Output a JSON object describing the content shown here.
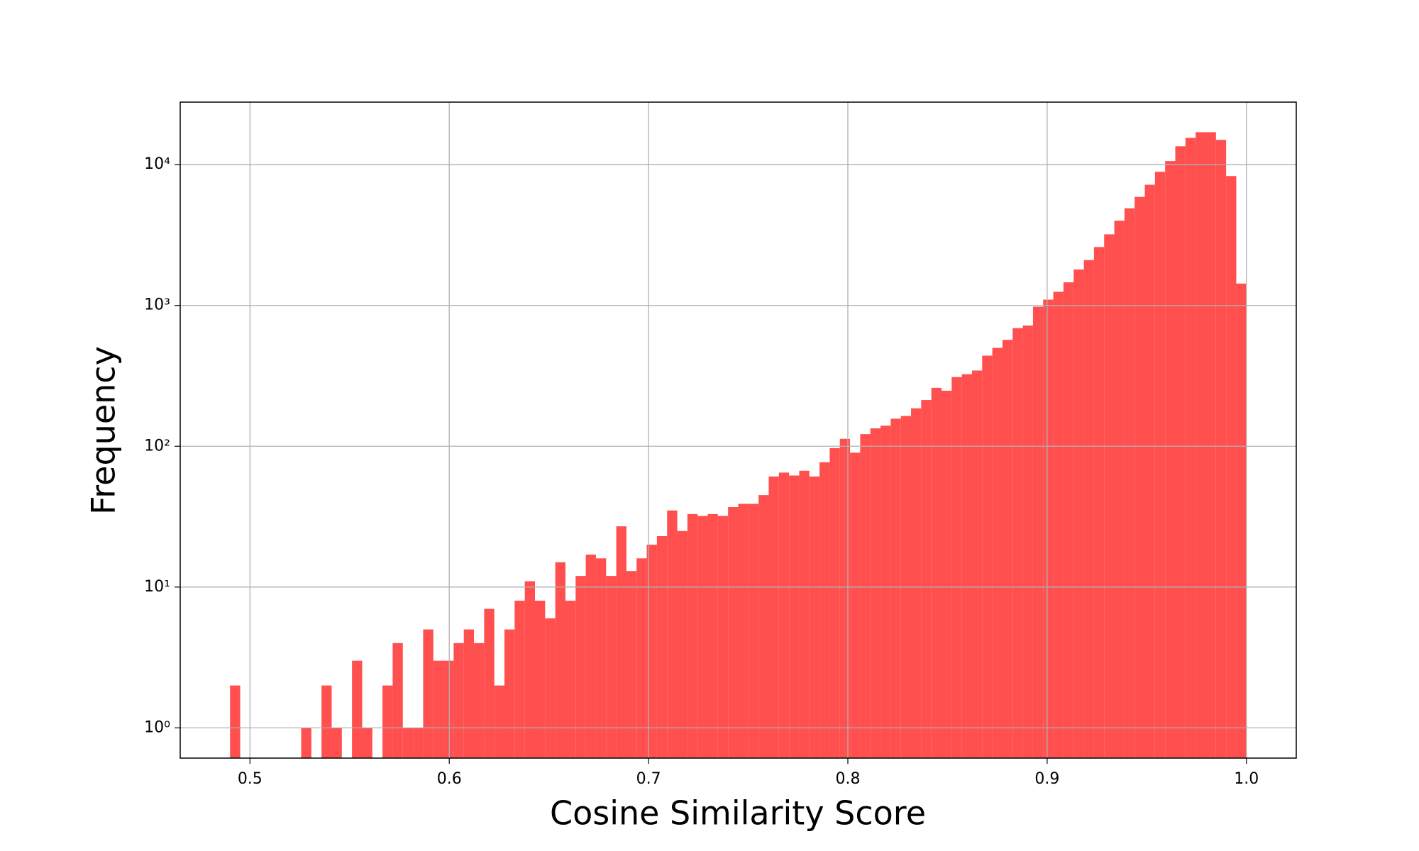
{
  "chart_data": {
    "type": "histogram",
    "x_label": "Cosine Similarity Score",
    "y_label": "Frequency",
    "bins": [
      0.49,
      0.4951,
      0.5002,
      0.5053,
      0.5104,
      0.5155,
      0.5206,
      0.5257,
      0.5308,
      0.5359,
      0.541,
      0.5461,
      0.5512,
      0.5563,
      0.5614,
      0.5665,
      0.5716,
      0.5767,
      0.5818,
      0.5869,
      0.592,
      0.5971,
      0.6022,
      0.6073,
      0.6124,
      0.6175,
      0.6226,
      0.6277,
      0.6328,
      0.6379,
      0.643,
      0.6481,
      0.6532,
      0.6583,
      0.6634,
      0.6685,
      0.6736,
      0.6787,
      0.6838,
      0.6889,
      0.694,
      0.6991,
      0.7042,
      0.7093,
      0.7144,
      0.7195,
      0.7246,
      0.7297,
      0.7348,
      0.7399,
      0.745,
      0.7501,
      0.7552,
      0.7603,
      0.7654,
      0.7705,
      0.7756,
      0.7807,
      0.7858,
      0.7909,
      0.796,
      0.8011,
      0.8062,
      0.8113,
      0.8164,
      0.8215,
      0.8266,
      0.8317,
      0.8368,
      0.8419,
      0.847,
      0.8521,
      0.8572,
      0.8623,
      0.8674,
      0.8725,
      0.8776,
      0.8827,
      0.8878,
      0.8929,
      0.898,
      0.9031,
      0.9082,
      0.9133,
      0.9184,
      0.9235,
      0.9286,
      0.9337,
      0.9388,
      0.9439,
      0.949,
      0.9541,
      0.9592,
      0.9643,
      0.9694,
      0.9745,
      0.9796,
      0.9847,
      0.9898,
      0.9949,
      1.0
    ],
    "values": [
      2,
      0,
      0,
      0,
      0,
      0,
      0,
      1,
      0,
      2,
      1,
      0,
      3,
      1,
      0,
      2,
      4,
      1,
      1,
      5,
      3,
      3,
      4,
      5,
      4,
      7,
      2,
      5,
      8,
      11,
      8,
      6,
      15,
      8,
      12,
      17,
      16,
      12,
      27,
      13,
      16,
      20,
      23,
      35,
      25,
      33,
      32,
      33,
      32,
      37,
      39,
      39,
      45,
      61,
      65,
      62,
      67,
      61,
      77,
      97,
      113,
      90,
      122,
      134,
      140,
      157,
      164,
      186,
      213,
      260,
      248,
      310,
      325,
      345,
      440,
      500,
      570,
      690,
      720,
      980,
      1100,
      1250,
      1460,
      1800,
      2100,
      2600,
      3200,
      4000,
      4900,
      5900,
      7200,
      8900,
      10600,
      13500,
      15500,
      17000,
      17000,
      15000,
      8300,
      1430
    ],
    "color": "#ff4f4f",
    "xlim": [
      0.465,
      1.025
    ],
    "xticks": [
      0.5,
      0.6,
      0.7,
      0.8,
      0.9,
      {
        "value": 1,
        "label": "1.0"
      }
    ],
    "ylim": [
      0.61,
      27800
    ],
    "yticks": [
      {
        "value": 1,
        "label": "10⁰"
      },
      {
        "value": 10,
        "label": "10¹"
      },
      {
        "value": 100,
        "label": "10²"
      },
      {
        "value": 1000,
        "label": "10³"
      },
      {
        "value": 10000,
        "label": "10⁴"
      }
    ],
    "log_y": true,
    "grid": true
  }
}
